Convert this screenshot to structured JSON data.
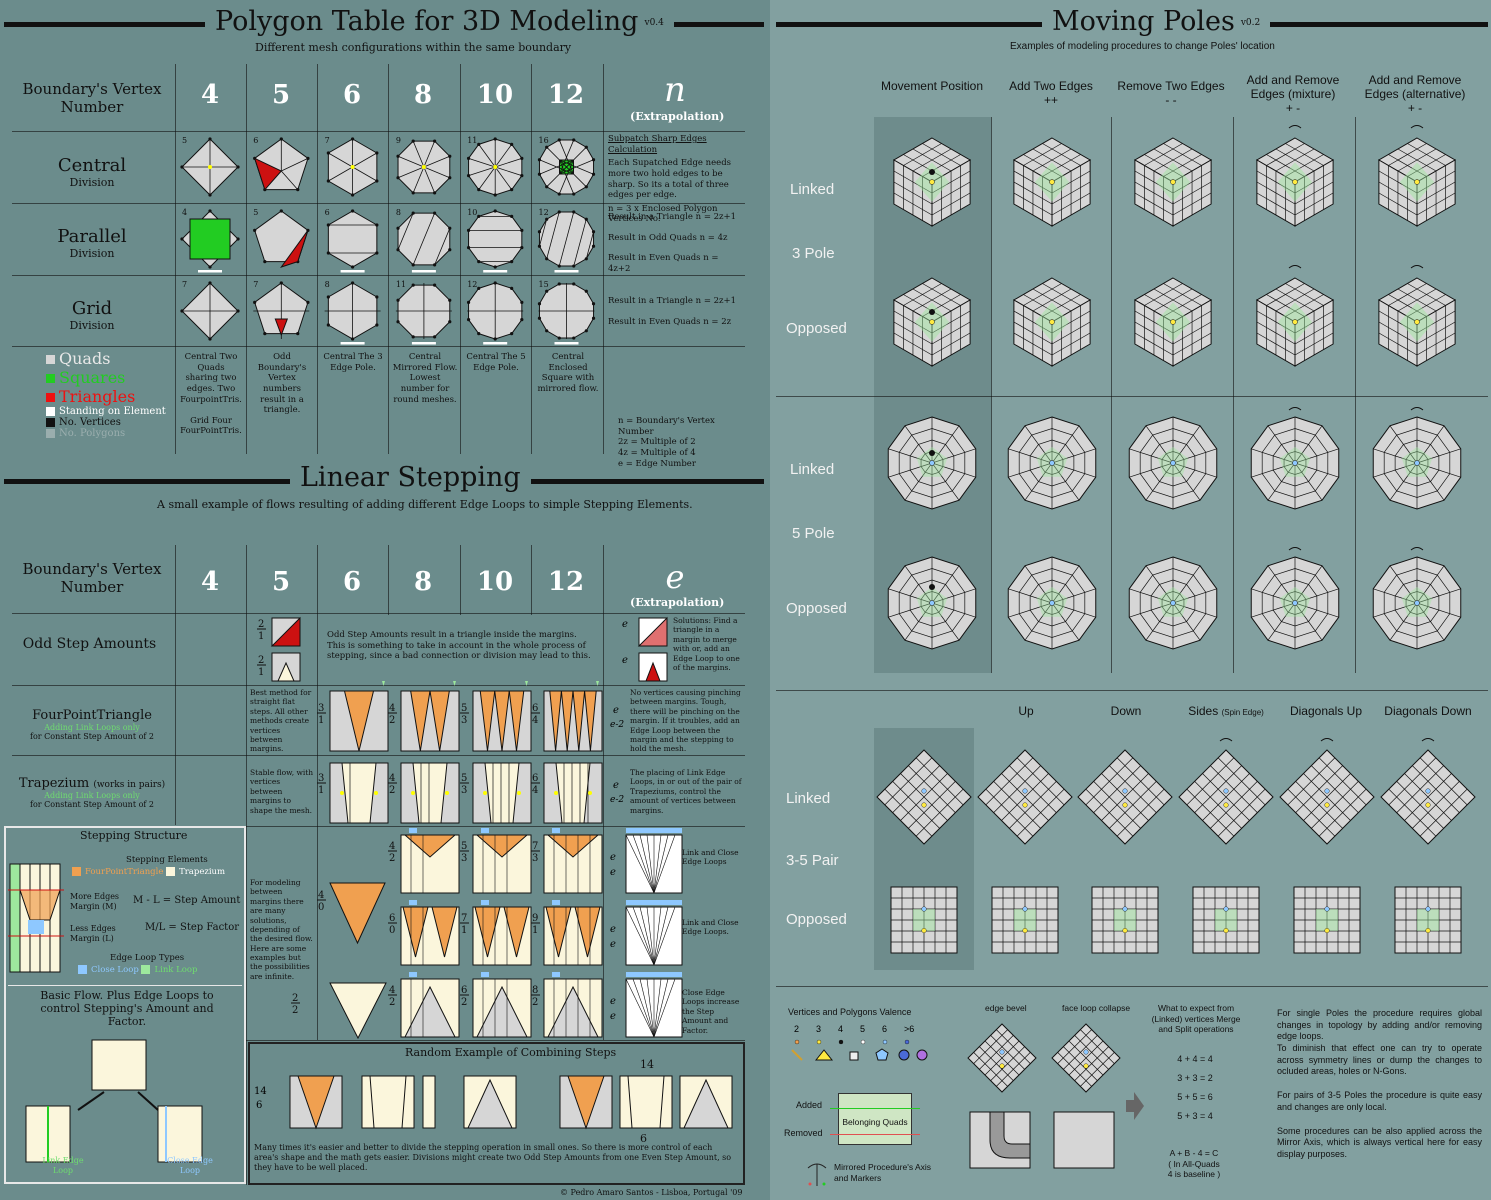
{
  "left": {
    "poly": {
      "title": "Polygon Table for 3D Modeling",
      "version": "v0.4",
      "subtitle": "Different mesh configurations within the same boundary",
      "boundary_label": "Boundary's Vertex Number",
      "columns": [
        "4",
        "5",
        "6",
        "8",
        "10",
        "12"
      ],
      "extrap_symbol": "n",
      "extrap_label": "(Extrapolation)",
      "rows": [
        {
          "name": "Central",
          "sub": "Division"
        },
        {
          "name": "Parallel",
          "sub": "Division"
        },
        {
          "name": "Grid",
          "sub": "Division"
        }
      ],
      "central_note_title": "Subpatch Sharp Edges Calculation",
      "central_note": "Each Supatched Edge needs more two hold edges to be sharp. So its a total of three edges per edge.",
      "central_formula": "n = 3 x Enclosed Polygon Vertices No.",
      "parallel_notes": [
        "Result in a Triangle    n = 2z+1",
        "Result in Odd Quads    n = 4z",
        "Result in Even Quads  n = 4z+2"
      ],
      "grid_notes": [
        "Result in a Triangle    n = 2z+1",
        "Result in Even Quads  n = 2z"
      ],
      "legend": [
        "Quads",
        "Squares",
        "Triangles",
        "Standing on Element",
        "No. Vertices",
        "No. Polygons"
      ],
      "bottom_notes": [
        "Central Two Quads sharing two edges. Two FourpointTris.",
        "Grid Four FourPointTris.",
        "Odd Boundary's Vertex numbers result in a triangle.",
        "Central The 3 Edge Pole.",
        "Central Mirrored Flow. Lowest number for round meshes.",
        "Central The 5 Edge Pole.",
        "Central Enclosed Square with mirrored flow."
      ],
      "defs": [
        "n = Boundary's Vertex Number",
        "2z = Multiple of 2",
        "4z = Multiple of 4",
        "e = Edge Number"
      ],
      "corner_numbers": [
        "5",
        "6",
        "7",
        "9",
        "11",
        "16",
        "4",
        "5",
        "6",
        "8",
        "10",
        "12",
        "7",
        "7",
        "8",
        "11",
        "12",
        "15"
      ]
    },
    "linear": {
      "title": "Linear Stepping",
      "subtitle": "A small example of flows resulting of adding different Edge Loops to simple Stepping Elements.",
      "boundary_label": "Boundary's Vertex Number",
      "columns": [
        "4",
        "5",
        "6",
        "8",
        "10",
        "12"
      ],
      "extrap_symbol": "e",
      "extrap_label": "(Extrapolation)",
      "odd_step": "Odd Step Amounts",
      "odd_step_note": "Odd Step Amounts result in a triangle inside the margins. This is something to take in account in the whole process of stepping, since a bad connection or division may lead to this.",
      "solutions_note": "Solutions: Find a triangle in a margin to merge with or, add an Edge Loop to one of the margins.",
      "fpt": "FourPointTriangle",
      "fpt_sub1": "Adding Link Loops only",
      "fpt_sub2": "for Constant Step Amount of 2",
      "fpt_note": "Best method for straight flat steps. All other methods create vertices between margins.",
      "fpt_extrap_note": "No vertices causing pinching between margins. Tough, there will be pinching on the margin. If it troubles, add an Edge Loop between the margin and the stepping to hold the mesh.",
      "trap": "Trapezium",
      "trap_paren": "(works in pairs)",
      "trap_sub1": "Adding Link Loops only",
      "trap_sub2": "for Constant Step Amount of 2",
      "trap_note": "Stable flow, with vertices between margins to shape the mesh.",
      "trap_extrap_note": "The placing of Link Edge Loops, in or out of the pair of Trapeziums, control the amount of vertices between margins.",
      "modeling_note": "For modeling between margins there are many solutions, depending of the desired flow. Here are some examples but the possibilities are infinite.",
      "link_close_1": "Link and Close Edge Loops",
      "link_close_2": "Link and Close Edge Loops.",
      "close_increase": "Close Edge Loops increase the Step Amount and Factor.",
      "random_title": "Random Example of Combining Steps",
      "random_note": "Many times it's easier and better to divide the stepping operation in small ones. So there is more control of each area's shape and the math gets easier. Divisions might create two Odd Step Amounts from one Even Step Amount, so they have to be well placed.",
      "random_top": "14",
      "random_bottom": "6",
      "stepping_structure": "Stepping Structure",
      "stepping_elements": "Stepping Elements",
      "fpt_chip": "FourPointTriangle",
      "trap_chip": "Trapezium",
      "more_edges": "More Edges Margin (M)",
      "less_edges": "Less Edges Margin (L)",
      "ml_formula": "M - L = Step Amount",
      "mfrac": "M/L = Step Factor",
      "loop_types": "Edge Loop Types",
      "close_loop": "Close Loop",
      "link_loop": "Link Loop",
      "basic_flow": "Basic Flow. Plus Edge Loops to control Stepping's Amount and Factor.",
      "link_edge": "Link Edge Loop",
      "close_edge": "Close Edge Loop",
      "credit": "© Pedro Amaro Santos - Lisboa, Portugal '09"
    }
  },
  "right": {
    "title": "Moving Poles",
    "version": "v0.2",
    "subtitle": "Examples of modeling procedures to change Poles' location",
    "col_heads": [
      {
        "t": "Movement Position",
        "s": ""
      },
      {
        "t": "Add Two Edges",
        "s": "++"
      },
      {
        "t": "Remove Two Edges",
        "s": "- -"
      },
      {
        "t": "Add and Remove Edges (mixture)",
        "s": "+ -"
      },
      {
        "t": "Add and Remove Edges (alternative)",
        "s": "+ -"
      }
    ],
    "row_labels": [
      "Linked",
      "3 Pole",
      "Opposed",
      "Linked",
      "5 Pole",
      "Opposed"
    ],
    "pair_heads": [
      "Up",
      "Down",
      "Sides",
      "Diagonals Up",
      "Diagonals Down"
    ],
    "sides_small": "(Spin Edge)",
    "pair_labels": [
      "Linked",
      "3-5 Pair",
      "Opposed"
    ],
    "valence_title": "Vertices and Polygons Valence",
    "valence_nums": [
      "2",
      "3",
      "4",
      "5",
      "6",
      ">6"
    ],
    "added": "Added",
    "removed": "Removed",
    "belonging": "Belonging Quads",
    "mirrored": "Mirrored Procedure's Axis and Markers",
    "edge_bevel": "edge bevel",
    "face_loop": "face loop collapse",
    "expect_title": "What to expect from (Linked) vertices Merge and Split operations",
    "eqs": [
      "4 + 4 = 4",
      "3 + 3 = 2",
      "5 + 5 = 6",
      "5 + 3 = 4",
      "A + B - 4 = C",
      "( In All-Quads",
      "4 is baseline )"
    ],
    "notes": [
      "For single Poles the procedure requires global changes in topology by adding and/or removing edge loops.",
      "To diminish that effect one can try to operate across symmetry lines or dump the changes to ocluded areas, holes or N-Gons.",
      "For pairs of 3-5 Poles the procedure is quite easy and changes are only local.",
      "Some procedures can be also applied across the Mirror Axis, which is always vertical here for easy display purposes."
    ]
  },
  "colors": {
    "green": "#22cc22",
    "red": "#cc1111",
    "orange": "#f0a050",
    "cream": "#fbf6dc",
    "light_blue": "#8ec8ff",
    "grey": "#d6d6d6"
  }
}
